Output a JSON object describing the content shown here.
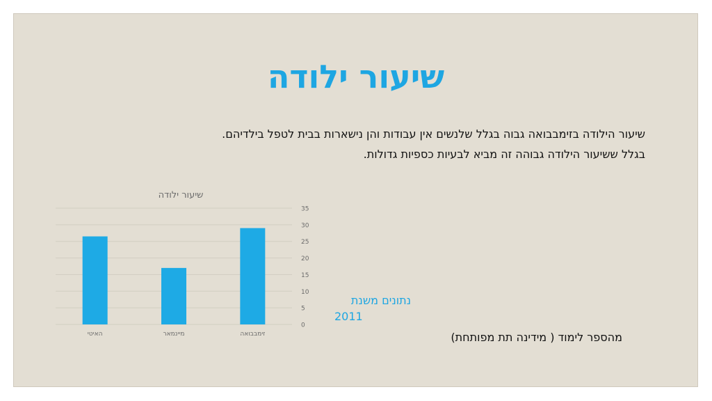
{
  "slide": {
    "title": "שיעור ילודה",
    "paragraphs": [
      "שיעור הילודה בזימבבואה גבוה בגלל שלנשים אין עבודות והן נישארות בבית לטפל בילדיהם.",
      "בגלל ששיעור הילודה גבוהה זה מביא לבעיות כספיות גדולות."
    ],
    "source_line1": "נתונים משנת",
    "source_line2": "2011",
    "footnote": "מהספר לימוד ( מידינה תת מפותחת)"
  },
  "colors": {
    "background": "#e3ded3",
    "accent": "#1ea6e2",
    "bar": "#1eaae5",
    "gridline": "#d2cdc2",
    "axis_text": "#6b6b6b"
  },
  "chart_data": {
    "type": "bar",
    "title": "שיעור ילודה",
    "categories": [
      "האיטי",
      "מיינמאר",
      "זימבבואה"
    ],
    "values": [
      26.5,
      17,
      29
    ],
    "ylim": [
      0,
      35
    ],
    "yticks": [
      0,
      5,
      10,
      15,
      20,
      25,
      30,
      35
    ],
    "y_axis_side": "right",
    "grid": true,
    "legend": "none"
  }
}
